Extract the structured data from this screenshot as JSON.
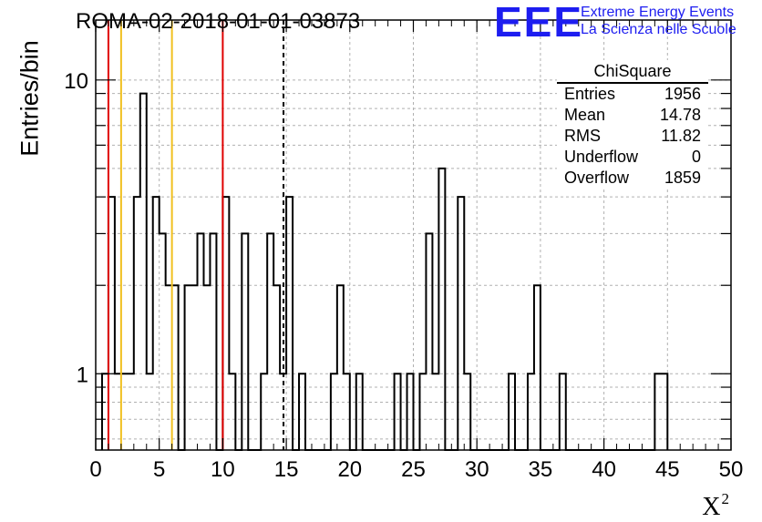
{
  "chart_data": {
    "type": "bar",
    "title": "ROMA-02-2018-01-01-03873",
    "xlabel": "X",
    "xlabel_sup": "2",
    "ylabel": "Entries/bin",
    "xlim": [
      0,
      50
    ],
    "ylim": [
      0.55,
      16
    ],
    "y_scale": "log",
    "bin_width": 0.5,
    "grid": true,
    "x_ticks": [
      0,
      5,
      10,
      15,
      20,
      25,
      30,
      35,
      40,
      45,
      50
    ],
    "y_ticks": [
      1,
      10
    ],
    "bins": [
      {
        "x": 0.5,
        "y": 1
      },
      {
        "x": 1.0,
        "y": 4
      },
      {
        "x": 1.5,
        "y": 1
      },
      {
        "x": 2.0,
        "y": 1
      },
      {
        "x": 2.5,
        "y": 1
      },
      {
        "x": 3.0,
        "y": 4
      },
      {
        "x": 3.5,
        "y": 9
      },
      {
        "x": 4.0,
        "y": 1
      },
      {
        "x": 4.5,
        "y": 4
      },
      {
        "x": 5.0,
        "y": 3
      },
      {
        "x": 5.5,
        "y": 2
      },
      {
        "x": 6.0,
        "y": 2
      },
      {
        "x": 6.5,
        "y": 0
      },
      {
        "x": 7.0,
        "y": 2
      },
      {
        "x": 7.5,
        "y": 2
      },
      {
        "x": 8.0,
        "y": 3
      },
      {
        "x": 8.5,
        "y": 2
      },
      {
        "x": 9.0,
        "y": 3
      },
      {
        "x": 9.5,
        "y": 0
      },
      {
        "x": 10.0,
        "y": 4
      },
      {
        "x": 10.5,
        "y": 1
      },
      {
        "x": 11.0,
        "y": 0
      },
      {
        "x": 11.5,
        "y": 3
      },
      {
        "x": 12.0,
        "y": 0
      },
      {
        "x": 12.5,
        "y": 0
      },
      {
        "x": 13.0,
        "y": 1
      },
      {
        "x": 13.5,
        "y": 3
      },
      {
        "x": 14.0,
        "y": 2
      },
      {
        "x": 14.5,
        "y": 1
      },
      {
        "x": 15.0,
        "y": 4
      },
      {
        "x": 15.5,
        "y": 0
      },
      {
        "x": 16.0,
        "y": 1
      },
      {
        "x": 16.5,
        "y": 0
      },
      {
        "x": 17.0,
        "y": 0
      },
      {
        "x": 17.5,
        "y": 0
      },
      {
        "x": 18.0,
        "y": 0
      },
      {
        "x": 18.5,
        "y": 1
      },
      {
        "x": 19.0,
        "y": 2
      },
      {
        "x": 19.5,
        "y": 1
      },
      {
        "x": 20.0,
        "y": 0
      },
      {
        "x": 20.5,
        "y": 1
      },
      {
        "x": 21.0,
        "y": 0
      },
      {
        "x": 21.5,
        "y": 0
      },
      {
        "x": 22.0,
        "y": 0
      },
      {
        "x": 22.5,
        "y": 0
      },
      {
        "x": 23.0,
        "y": 0
      },
      {
        "x": 23.5,
        "y": 1
      },
      {
        "x": 24.0,
        "y": 0
      },
      {
        "x": 24.5,
        "y": 1
      },
      {
        "x": 25.0,
        "y": 0
      },
      {
        "x": 25.5,
        "y": 1
      },
      {
        "x": 26.0,
        "y": 3
      },
      {
        "x": 26.5,
        "y": 1
      },
      {
        "x": 27.0,
        "y": 5
      },
      {
        "x": 27.5,
        "y": 0
      },
      {
        "x": 28.0,
        "y": 0
      },
      {
        "x": 28.5,
        "y": 4
      },
      {
        "x": 29.0,
        "y": 1
      },
      {
        "x": 29.5,
        "y": 0
      },
      {
        "x": 30.0,
        "y": 0
      },
      {
        "x": 30.5,
        "y": 0
      },
      {
        "x": 31.0,
        "y": 0
      },
      {
        "x": 31.5,
        "y": 0
      },
      {
        "x": 32.0,
        "y": 0
      },
      {
        "x": 32.5,
        "y": 1
      },
      {
        "x": 33.0,
        "y": 0
      },
      {
        "x": 33.5,
        "y": 0
      },
      {
        "x": 34.0,
        "y": 1
      },
      {
        "x": 34.5,
        "y": 2
      },
      {
        "x": 35.0,
        "y": 0
      },
      {
        "x": 35.5,
        "y": 0
      },
      {
        "x": 36.0,
        "y": 0
      },
      {
        "x": 36.5,
        "y": 1
      },
      {
        "x": 37.0,
        "y": 0
      },
      {
        "x": 37.5,
        "y": 0
      },
      {
        "x": 38.0,
        "y": 0
      },
      {
        "x": 38.5,
        "y": 0
      },
      {
        "x": 39.0,
        "y": 0
      },
      {
        "x": 39.5,
        "y": 0
      },
      {
        "x": 40.0,
        "y": 0
      },
      {
        "x": 40.5,
        "y": 0
      },
      {
        "x": 41.0,
        "y": 0
      },
      {
        "x": 41.5,
        "y": 0
      },
      {
        "x": 42.0,
        "y": 0
      },
      {
        "x": 42.5,
        "y": 0
      },
      {
        "x": 43.0,
        "y": 0
      },
      {
        "x": 43.5,
        "y": 0
      },
      {
        "x": 44.0,
        "y": 1
      },
      {
        "x": 44.5,
        "y": 1
      }
    ],
    "vertical_lines": [
      {
        "x": 1,
        "color": "#e00000",
        "style": "solid"
      },
      {
        "x": 2,
        "color": "#f0c020",
        "style": "solid"
      },
      {
        "x": 6,
        "color": "#f0c020",
        "style": "solid"
      },
      {
        "x": 10,
        "color": "#e00000",
        "style": "solid"
      },
      {
        "x": 14.78,
        "color": "#000000",
        "style": "dashed"
      }
    ],
    "stats_box": {
      "title": "ChiSquare",
      "rows": [
        {
          "label": "Entries",
          "value": "1956"
        },
        {
          "label": "Mean",
          "value": "14.78"
        },
        {
          "label": "RMS",
          "value": "11.82"
        },
        {
          "label": "Underflow",
          "value": "0"
        },
        {
          "label": "Overflow",
          "value": "1859"
        }
      ]
    }
  },
  "logo": {
    "mark": "EEE",
    "line1": "Extreme Energy Events",
    "line2": "La Scienza nelle Scuole"
  }
}
